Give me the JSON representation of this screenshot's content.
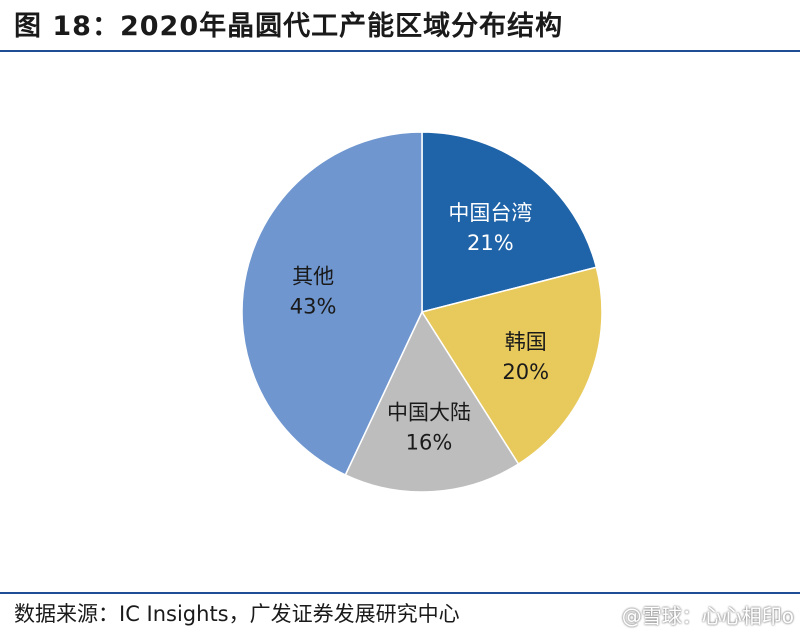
{
  "header": {
    "title": "图 18：2020年晶圆代工产能区域分布结构"
  },
  "chart_data": {
    "type": "pie",
    "title": "",
    "slices": [
      {
        "label": "中国台湾",
        "value": 21,
        "display": "21%",
        "color": "#1f63a8",
        "text_color": "#ffffff"
      },
      {
        "label": "韩国",
        "value": 20,
        "display": "20%",
        "color": "#e8c95c",
        "text_color": "#1a1a1a"
      },
      {
        "label": "中国大陆",
        "value": 16,
        "display": "16%",
        "color": "#bdbdbd",
        "text_color": "#1a1a1a"
      },
      {
        "label": "其他",
        "value": 43,
        "display": "43%",
        "color": "#6f96cf",
        "text_color": "#1a1a1a"
      }
    ],
    "start": "12 o'clock",
    "direction": "clockwise",
    "legend": "none"
  },
  "footer": {
    "source": "数据来源：IC Insights，广发证券发展研究中心"
  },
  "watermark": {
    "text": "@雪球：心心相印o"
  }
}
